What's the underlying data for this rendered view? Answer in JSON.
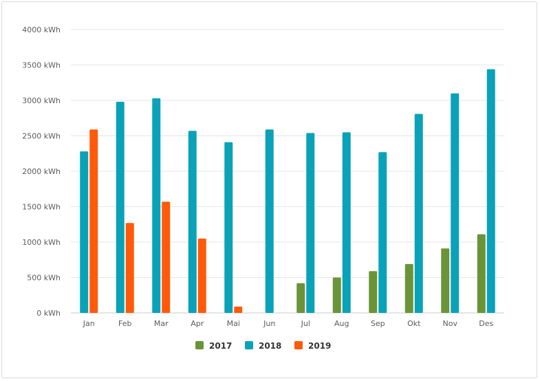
{
  "chart_data": {
    "type": "bar",
    "categories": [
      "Jan",
      "Feb",
      "Mar",
      "Apr",
      "Mai",
      "Jun",
      "Jul",
      "Aug",
      "Sep",
      "Okt",
      "Nov",
      "Des"
    ],
    "series": [
      {
        "name": "2017",
        "color": "#6a9438",
        "values": [
          null,
          null,
          null,
          null,
          null,
          null,
          420,
          500,
          590,
          690,
          910,
          1110
        ]
      },
      {
        "name": "2018",
        "color": "#0aa2b8",
        "values": [
          2280,
          2980,
          3030,
          2570,
          2410,
          2590,
          2540,
          2550,
          2270,
          2810,
          3100,
          3440
        ]
      },
      {
        "name": "2019",
        "color": "#ff5a0a",
        "values": [
          2590,
          1270,
          1570,
          1050,
          90,
          null,
          null,
          null,
          null,
          null,
          null,
          null
        ]
      }
    ],
    "y_ticks": [
      "0 kWh",
      "500 kWh",
      "1000 kWh",
      "1500 kWh",
      "2000 kWh",
      "2500 kWh",
      "3000 kWh",
      "3500 kWh",
      "4000 kWh"
    ],
    "ylim": [
      0,
      4000
    ],
    "grid": true,
    "legend_position": "bottom-center"
  }
}
